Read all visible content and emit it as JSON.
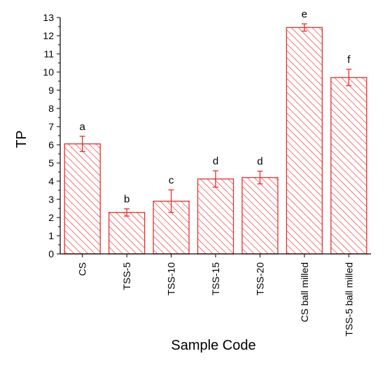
{
  "chart_data": {
    "type": "bar",
    "title": "",
    "xlabel": "Sample Code",
    "ylabel": "TP",
    "ylim": [
      0,
      13
    ],
    "yticks": [
      0,
      1,
      2,
      3,
      4,
      5,
      6,
      7,
      8,
      9,
      10,
      11,
      12,
      13
    ],
    "categories": [
      "CS",
      "TSS-5",
      "TSS-10",
      "TSS-15",
      "TSS-20",
      "CS ball milled",
      "TSS-5 ball milled"
    ],
    "values": [
      6.05,
      2.28,
      2.9,
      4.12,
      4.2,
      12.45,
      9.7
    ],
    "errors": [
      0.42,
      0.2,
      0.62,
      0.45,
      0.35,
      0.2,
      0.45
    ],
    "significance_letters": [
      "a",
      "b",
      "c",
      "d",
      "d",
      "e",
      "f"
    ],
    "bar_color": "#e53030",
    "bar_fill": "hatched",
    "grid": false,
    "legend": "none"
  }
}
